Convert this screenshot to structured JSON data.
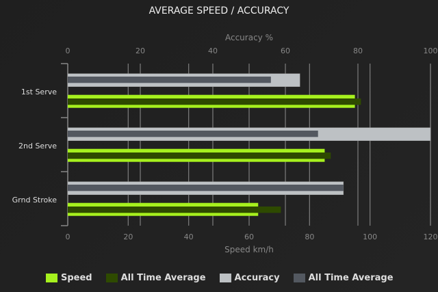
{
  "chart_data": {
    "type": "bar",
    "orientation": "horizontal",
    "title": "AVERAGE SPEED / ACCURACY",
    "categories": [
      "1st Serve",
      "2nd Serve",
      "Grnd Stroke"
    ],
    "x_top_axis": {
      "label": "Accuracy %",
      "range": [
        0,
        100
      ],
      "ticks": [
        0,
        20,
        40,
        60,
        80,
        100
      ]
    },
    "x_bottom_axis": {
      "label": "Speed km/h",
      "range": [
        0,
        120
      ],
      "ticks": [
        0,
        20,
        40,
        60,
        80,
        100,
        120
      ]
    },
    "grid": true,
    "legend_position": "bottom",
    "series": [
      {
        "name": "Speed",
        "axis": "speed",
        "color": "#a6f11e",
        "values": [
          95,
          85,
          63
        ]
      },
      {
        "name": "All Time Average",
        "axis": "speed",
        "color": "#2e4a00",
        "values": [
          97,
          87,
          70.5
        ]
      },
      {
        "name": "Accuracy",
        "axis": "accuracy",
        "color": "#bdc1c4",
        "values": [
          64,
          100,
          76
        ]
      },
      {
        "name": "All Time Average",
        "axis": "accuracy",
        "color": "#535860",
        "values": [
          56,
          69,
          76
        ]
      }
    ]
  }
}
